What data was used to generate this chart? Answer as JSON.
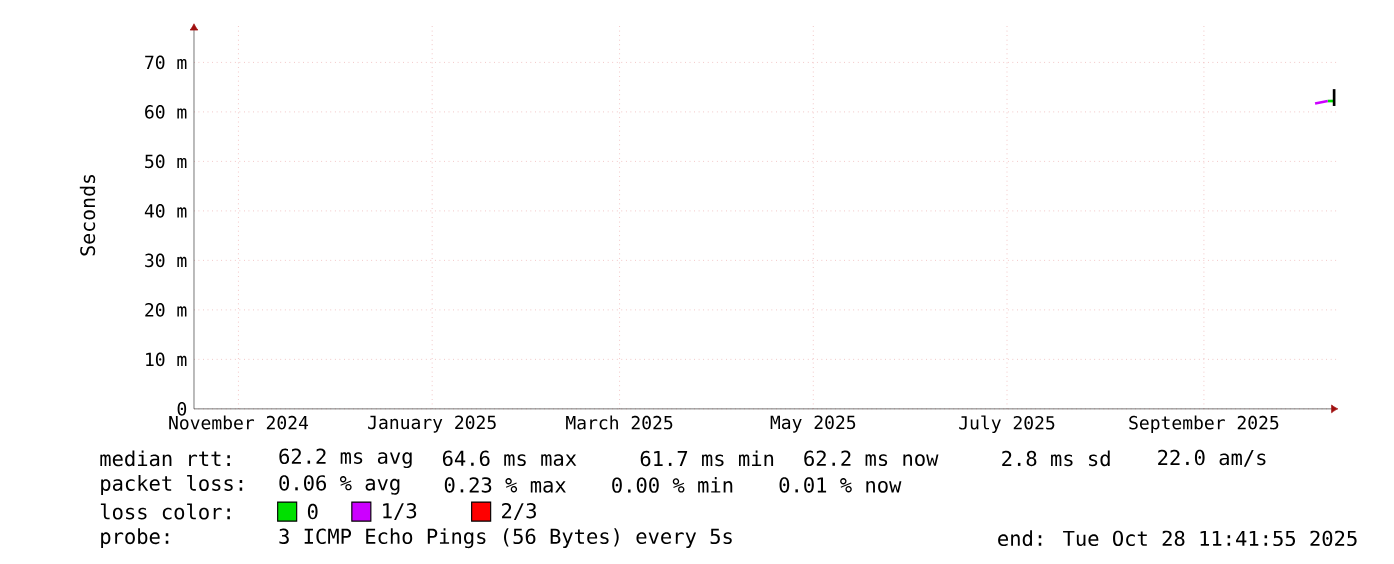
{
  "chart_data": {
    "type": "line",
    "ylabel": "Seconds",
    "xlim": [
      "2024-11-02",
      "2025-10-28T11:41"
    ],
    "xticks": [
      {
        "value": "2024-11-16",
        "label": "November 2024"
      },
      {
        "value": "2025-01-16",
        "label": "January 2025"
      },
      {
        "value": "2025-03-16",
        "label": "March 2025"
      },
      {
        "value": "2025-05-16",
        "label": "May 2025"
      },
      {
        "value": "2025-07-16",
        "label": "July 2025"
      },
      {
        "value": "2025-09-16",
        "label": "September 2025"
      }
    ],
    "ylim": [
      0,
      78
    ],
    "yticks": [
      0,
      {
        "value": 10,
        "label": "10 m"
      },
      {
        "value": 20,
        "label": "20 m"
      },
      {
        "value": 30,
        "label": "30 m"
      },
      {
        "value": 40,
        "label": "40 m"
      },
      {
        "value": 50,
        "label": "50 m"
      },
      {
        "value": 60,
        "label": "60 m"
      },
      {
        "value": 70,
        "label": "70 m"
      }
    ],
    "grid": true,
    "legend": "bottom",
    "series": [
      {
        "name": "0",
        "color": "#00e000",
        "x": [
          "2025-10-25",
          "2025-10-27"
        ],
        "values": [
          62.2,
          62.2
        ]
      },
      {
        "name": "1/3",
        "color": "#cc00ff",
        "x": [
          "2025-10-21",
          "2025-10-25"
        ],
        "values": [
          61.7,
          62.2
        ]
      },
      {
        "name": "2/3",
        "color": "#ff0000"
      },
      {
        "color": "#000000",
        "x": [
          "2025-10-27",
          "2025-10-27"
        ],
        "values": [
          61.2,
          64.6
        ]
      }
    ],
    "annotations": [
      "median rtt:",
      "62.2 ms avg",
      "64.6 ms max",
      "61.7 ms min",
      "62.2 ms now",
      "2.8 ms sd",
      "22.0 am/s",
      "packet loss:",
      "0.06 % avg",
      "0.23 % max",
      "0.00 % min",
      "0.01 % now",
      "loss color:",
      "probe:",
      "3 ICMP Echo Pings (56 Bytes) every 5s",
      "end: Tue Oct 28 11:41:55 2025"
    ]
  }
}
